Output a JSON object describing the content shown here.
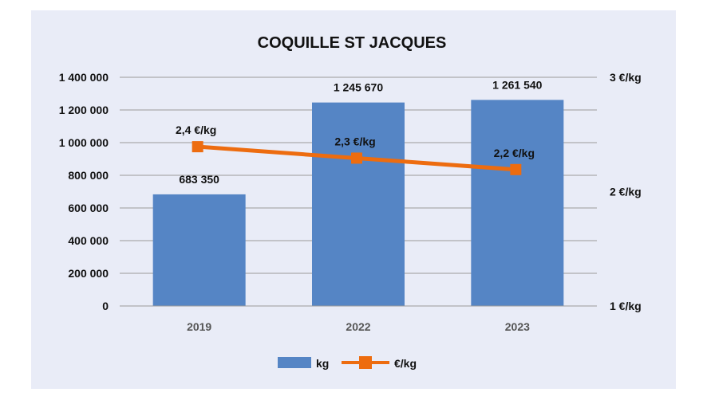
{
  "chart_data": {
    "type": "bar",
    "title": "COQUILLE ST JACQUES",
    "categories": [
      "2019",
      "2022",
      "2023"
    ],
    "series": [
      {
        "name": "kg",
        "type": "bar",
        "axis": "left",
        "values": [
          683350,
          1245670,
          1261540
        ],
        "labels": [
          "683 350",
          "1 245 670",
          "1 261 540"
        ],
        "color": "#5585c5"
      },
      {
        "name": "€/kg",
        "type": "line",
        "axis": "right",
        "values": [
          2.4,
          2.3,
          2.2
        ],
        "labels": [
          "2,4 €/kg",
          "2,3 €/kg",
          "2,2 €/kg"
        ],
        "color": "#ed6c0f"
      }
    ],
    "y_left": {
      "ylim": [
        0,
        1400000
      ],
      "ticks": [
        0,
        200000,
        400000,
        600000,
        800000,
        1000000,
        1200000,
        1400000
      ],
      "tick_labels": [
        "0",
        "200 000",
        "400 000",
        "600 000",
        "800 000",
        "1 000 000",
        "1 200 000",
        "1 400 000"
      ]
    },
    "y_right": {
      "ylim": [
        1,
        3
      ],
      "ticks": [
        1,
        2,
        3
      ],
      "tick_labels": [
        "1 €/kg",
        "2 €/kg",
        "3 €/kg"
      ]
    },
    "grid": true,
    "legend": "bottom"
  },
  "colors": {
    "background": "#e9ecf7",
    "grid": "#9a9a9a"
  }
}
